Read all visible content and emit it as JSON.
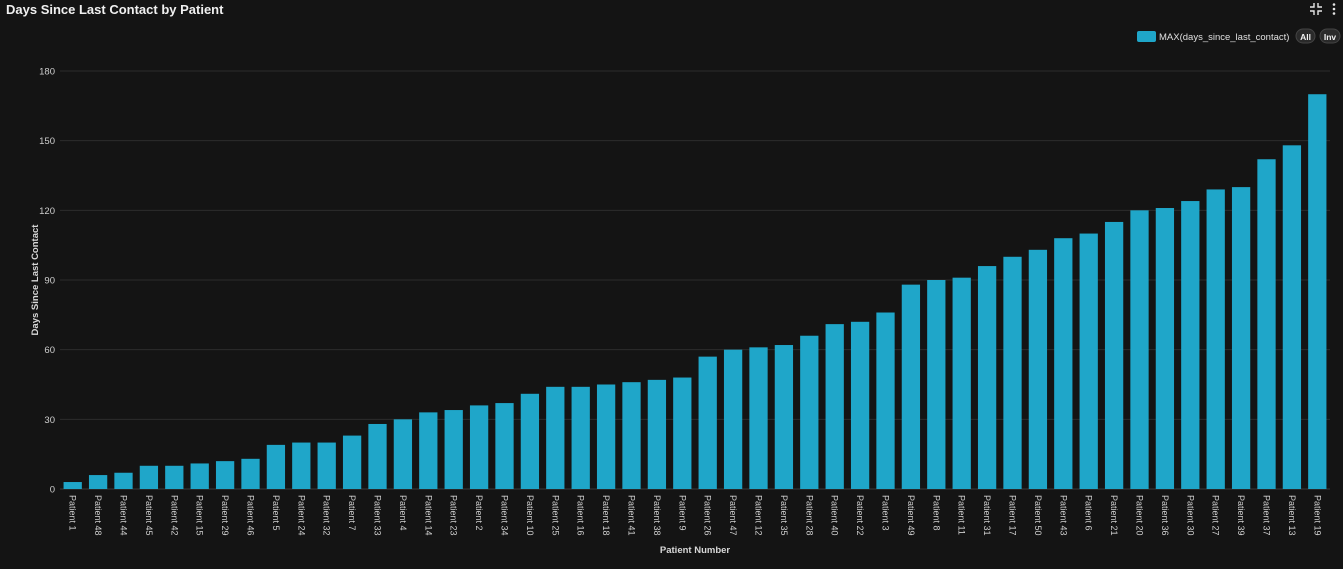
{
  "panel": {
    "title": "Days Since Last Contact by Patient",
    "icons": [
      "minimize-icon",
      "more-options-icon"
    ]
  },
  "legend": {
    "series_label": "MAX(days_since_last_contact)",
    "all_label": "All",
    "inv_label": "Inv",
    "position": "top-right"
  },
  "colors": {
    "background": "#141414",
    "bar": "#1fa6c9",
    "grid": "#2c2c2c",
    "axis_text": "#cfcfcf"
  },
  "chart_data": {
    "type": "bar",
    "title": "Days Since Last Contact by Patient",
    "xlabel": "Patient Number",
    "ylabel": "Days Since Last Contact",
    "ylim": [
      0,
      180
    ],
    "yticks": [
      0,
      30,
      60,
      90,
      120,
      150,
      180
    ],
    "grid": true,
    "legend_position": "top-right",
    "categories": [
      "Patient 1",
      "Patient 48",
      "Patient 44",
      "Patient 45",
      "Patient 42",
      "Patient 15",
      "Patient 29",
      "Patient 46",
      "Patient 5",
      "Patient 24",
      "Patient 32",
      "Patient 7",
      "Patient 33",
      "Patient 4",
      "Patient 14",
      "Patient 23",
      "Patient 2",
      "Patient 34",
      "Patient 10",
      "Patient 25",
      "Patient 16",
      "Patient 18",
      "Patient 41",
      "Patient 38",
      "Patient 9",
      "Patient 26",
      "Patient 47",
      "Patient 12",
      "Patient 35",
      "Patient 28",
      "Patient 40",
      "Patient 22",
      "Patient 3",
      "Patient 49",
      "Patient 8",
      "Patient 11",
      "Patient 31",
      "Patient 17",
      "Patient 50",
      "Patient 43",
      "Patient 6",
      "Patient 21",
      "Patient 20",
      "Patient 36",
      "Patient 30",
      "Patient 27",
      "Patient 39",
      "Patient 37",
      "Patient 13",
      "Patient 19"
    ],
    "series": [
      {
        "name": "MAX(days_since_last_contact)",
        "values": [
          3,
          6,
          7,
          10,
          10,
          11,
          12,
          13,
          19,
          20,
          20,
          23,
          28,
          30,
          33,
          34,
          36,
          37,
          41,
          44,
          44,
          45,
          46,
          47,
          48,
          57,
          60,
          61,
          62,
          66,
          71,
          72,
          76,
          88,
          90,
          91,
          96,
          100,
          103,
          108,
          110,
          115,
          120,
          121,
          124,
          129,
          130,
          142,
          148,
          170
        ]
      }
    ]
  }
}
